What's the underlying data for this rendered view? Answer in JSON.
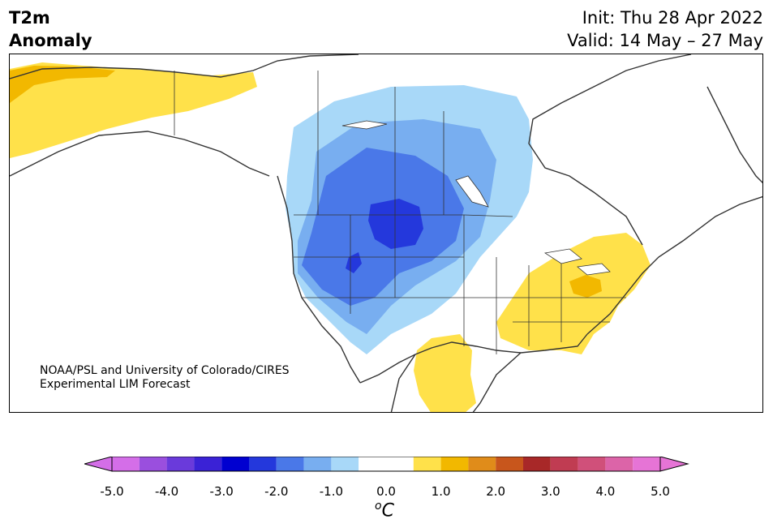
{
  "header": {
    "title_line1": "T2m",
    "title_line2": "Anomaly",
    "init": "Init: Thu 28 Apr 2022",
    "valid": "Valid: 14 May – 27 May"
  },
  "credit": {
    "line1": "NOAA/PSL and University of Colorado/CIRES",
    "line2": "Experimental LIM Forecast"
  },
  "colorbar": {
    "unit_base": "C",
    "unit_sup": "o",
    "ticks": [
      "-5.0",
      "-4.0",
      "-3.0",
      "-2.0",
      "-1.0",
      "0.0",
      "1.0",
      "2.0",
      "3.0",
      "4.0",
      "5.0"
    ],
    "tick_values": [
      -5,
      -4,
      -3,
      -2,
      -1,
      0,
      1,
      2,
      3,
      4,
      5
    ],
    "levels": [
      -5,
      -4.5,
      -4,
      -3.5,
      -3,
      -2.5,
      -2,
      -1.5,
      -1,
      -0.5,
      0.5,
      1,
      1.5,
      2,
      2.5,
      3,
      3.5,
      4,
      4.5,
      5
    ],
    "colors": [
      "#d46ee8",
      "#9a4fde",
      "#6a3adb",
      "#3a22d6",
      "#0000d0",
      "#2438dc",
      "#4a78e8",
      "#78aef0",
      "#a8d8f8",
      "#ffffff",
      "#ffe14a",
      "#f2b800",
      "#e08c1a",
      "#c8561c",
      "#a82828",
      "#c03c52",
      "#d0507a",
      "#dc64a8",
      "#e674d6"
    ],
    "under_color": "#d46ee8",
    "over_color": "#e674d6"
  },
  "map": {
    "region": "North America",
    "variable": "2 m temperature anomaly",
    "land_outline_color": "#333333",
    "anomaly_regions": [
      {
        "area": "Alaska",
        "sign": "warm",
        "max_level": 1.5
      },
      {
        "area": "Upper Midwest / Great Plains",
        "sign": "cold",
        "min_level": -3.0
      },
      {
        "area": "Great Basin",
        "sign": "cold",
        "min_level": -3.0
      },
      {
        "area": "Ohio Valley / Mid-Atlantic",
        "sign": "warm",
        "max_level": 1.5
      },
      {
        "area": "Southeast US",
        "sign": "warm",
        "max_level": 1.0
      },
      {
        "area": "Northern Mexico",
        "sign": "warm",
        "max_level": 1.0
      }
    ]
  }
}
